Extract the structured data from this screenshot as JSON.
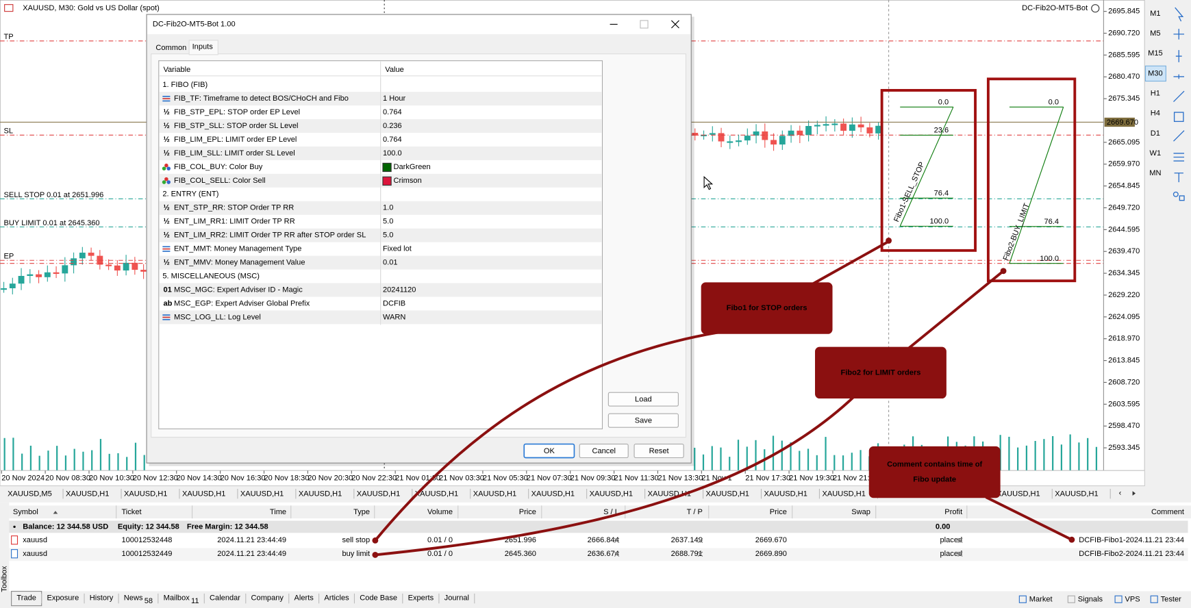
{
  "chart_window": {
    "title": "XAUUSD, M30:  Gold vs US Dollar (spot)",
    "ea_label": "DC-Fib2O-MT5-Bot",
    "line_labels": {
      "tp": "TP",
      "sl": "SL",
      "sell_stop": "SELL STOP 0.01 at 2651.996",
      "buy_limit": "BUY LIMIT 0.01 at 2645.360",
      "ep": "EP"
    },
    "price_labels": [
      "2695.845",
      "2690.720",
      "2685.595",
      "2680.470",
      "2675.345",
      "2665.095",
      "2659.970",
      "2654.845",
      "2649.720",
      "2644.595",
      "2639.470",
      "2634.345",
      "2629.220",
      "2624.095",
      "2618.970",
      "2613.845",
      "2608.720",
      "2603.595",
      "2598.470",
      "2593.345"
    ],
    "current_price": "2669.670",
    "time_labels": [
      "20 Nov 2024",
      "20 Nov 08:30",
      "20 Nov 10:30",
      "20 Nov 12:30",
      "20 Nov 14:30",
      "20 Nov 16:30",
      "20 Nov 18:30",
      "20 Nov 20:30",
      "20 Nov 22:30",
      "21 Nov 01:30",
      "21 Nov 03:30",
      "21 Nov 05:30",
      "21 Nov 07:30",
      "21 Nov 09:30",
      "21 Nov 11:30",
      "21 Nov 13:30",
      "21 Nov 1",
      "21 Nov 17:30",
      "21 Nov 19:30",
      "21 Nov 21:3"
    ],
    "timeframes": [
      {
        "label": "M1"
      },
      {
        "label": "M5"
      },
      {
        "label": "M15"
      },
      {
        "label": "M30",
        "active": true
      },
      {
        "label": "H1"
      },
      {
        "label": "H4"
      },
      {
        "label": "D1"
      },
      {
        "label": "W1"
      },
      {
        "label": "MN"
      }
    ],
    "fibo1": {
      "name": "Fibo1-SELL_STOP",
      "levels": [
        "0.0",
        "23.6",
        "76.4",
        "100.0"
      ]
    },
    "fibo2": {
      "name": "Fibo2-BUY_LIMIT",
      "levels": [
        "0.0",
        "76.4",
        "100.0"
      ]
    },
    "symbol_tabs": [
      "XAUUSD,M5",
      "XAUUSD,H1",
      "XAUUSD,H1",
      "XAUUSD,H1",
      "XAUUSD,H1",
      "XAUUSD,H1",
      "XAUUSD,H1",
      "XAUUSD,H1",
      "XAUUSD,H1",
      "XAUUSD,H1",
      "XAUUSD,H1",
      "XAUUSD,H1",
      "XAUUSD,H1",
      "XAUUSD,H1",
      "XAUUSD,H1",
      "XAUUSD,H1",
      "XAUUSD,H1"
    ]
  },
  "dialog": {
    "title": "DC-Fib2O-MT5-Bot 1.00",
    "tabs": [
      "Common",
      "Inputs"
    ],
    "headers": [
      "Variable",
      "Value"
    ],
    "rows": [
      {
        "variable": "1. FIBO (FIB)"
      },
      {
        "variable": "FIB_TF: Timeframe to detect BOS/CHoCH and Fibo",
        "value": "1 Hour"
      },
      {
        "icon": "½",
        "variable": "FIB_STP_EPL: STOP order EP Level",
        "value": "0.764"
      },
      {
        "icon": "½",
        "variable": "FIB_STP_SLL: STOP order SL Level",
        "value": "0.236"
      },
      {
        "icon": "½",
        "variable": "FIB_LIM_EPL: LIMIT order EP Level",
        "value": "0.764"
      },
      {
        "icon": "½",
        "variable": "FIB_LIM_SLL: LIMIT order SL Level",
        "value": "100.0"
      },
      {
        "variable": "FIB_COL_BUY: Color Buy",
        "value": "DarkGreen",
        "swatch": "#006400"
      },
      {
        "variable": "FIB_COL_SELL: Color Sell",
        "value": "Crimson",
        "swatch": "#dc143c"
      },
      {
        "variable": "2. ENTRY (ENT)"
      },
      {
        "icon": "½",
        "variable": "ENT_STP_RR: STOP Order TP RR",
        "value": "1.0"
      },
      {
        "icon": "½",
        "variable": "ENT_LIM_RR1: LIMIT Order TP RR",
        "value": "5.0"
      },
      {
        "icon": "½",
        "variable": "ENT_LIM_RR2: LIMIT Order TP RR after STOP order SL",
        "value": "5.0"
      },
      {
        "variable": "ENT_MMT: Money Management Type",
        "value": "Fixed lot"
      },
      {
        "icon": "½",
        "variable": "ENT_MMV: Money Management Value",
        "value": "0.01"
      },
      {
        "variable": "5. MISCELLANEOUS (MSC)"
      },
      {
        "icon": "01",
        "variable": "MSC_MGC: Expert Adviser ID - Magic",
        "value": "20241120"
      },
      {
        "icon": "ab",
        "variable": "MSC_EGP: Expert Adviser Global Prefix",
        "value": "DCFIB"
      },
      {
        "variable": "MSC_LOG_LL: Log Level",
        "value": "WARN"
      }
    ],
    "buttons": {
      "load": "Load",
      "save": "Save",
      "ok": "OK",
      "cancel": "Cancel",
      "reset": "Reset"
    }
  },
  "callouts": [
    "Fibo1 for STOP orders",
    "Fibo2 for LIMIT orders",
    "Comment contains time of Fibo update"
  ],
  "toolbox": {
    "label": "Toolbox",
    "headers": [
      "Symbol",
      "Ticket",
      "Time",
      "Type",
      "Volume",
      "Price",
      "S / L",
      "T / P",
      "Price",
      "Swap",
      "Profit",
      "Comment"
    ],
    "balance": {
      "balance": "Balance: 12 344.58 USD",
      "equity": "Equity: 12 344.58",
      "free_margin": "Free Margin: 12 344.58",
      "profit": "0.00"
    },
    "orders": [
      [
        "xauusd",
        "100012532448",
        "2024.11.21 23:44:49",
        "sell stop",
        "0.01 / 0",
        "2651.996",
        "2666.844",
        "2637.149",
        "2669.670",
        null,
        "placed",
        "DCFIB-Fibo1-2024.11.21 23:44"
      ],
      [
        "xauusd",
        "100012532449",
        "2024.11.21 23:44:49",
        "buy limit",
        "0.01 / 0",
        "2645.360",
        "2636.674",
        "2688.791",
        "2669.890",
        null,
        "placed",
        "DCFIB-Fibo2-2024.11.21 23:44"
      ]
    ],
    "tabs": [
      {
        "label": "Trade",
        "active": true
      },
      {
        "label": "Exposure"
      },
      {
        "label": "History"
      },
      {
        "label": "News",
        "badge": "58"
      },
      {
        "label": "Mailbox",
        "badge": "11"
      },
      {
        "label": "Calendar"
      },
      {
        "label": "Company"
      },
      {
        "label": "Alerts"
      },
      {
        "label": "Articles"
      },
      {
        "label": "Code Base"
      },
      {
        "label": "Experts"
      },
      {
        "label": "Journal"
      }
    ],
    "right_tabs": [
      "Market",
      "Signals",
      "VPS",
      "Tester"
    ]
  }
}
